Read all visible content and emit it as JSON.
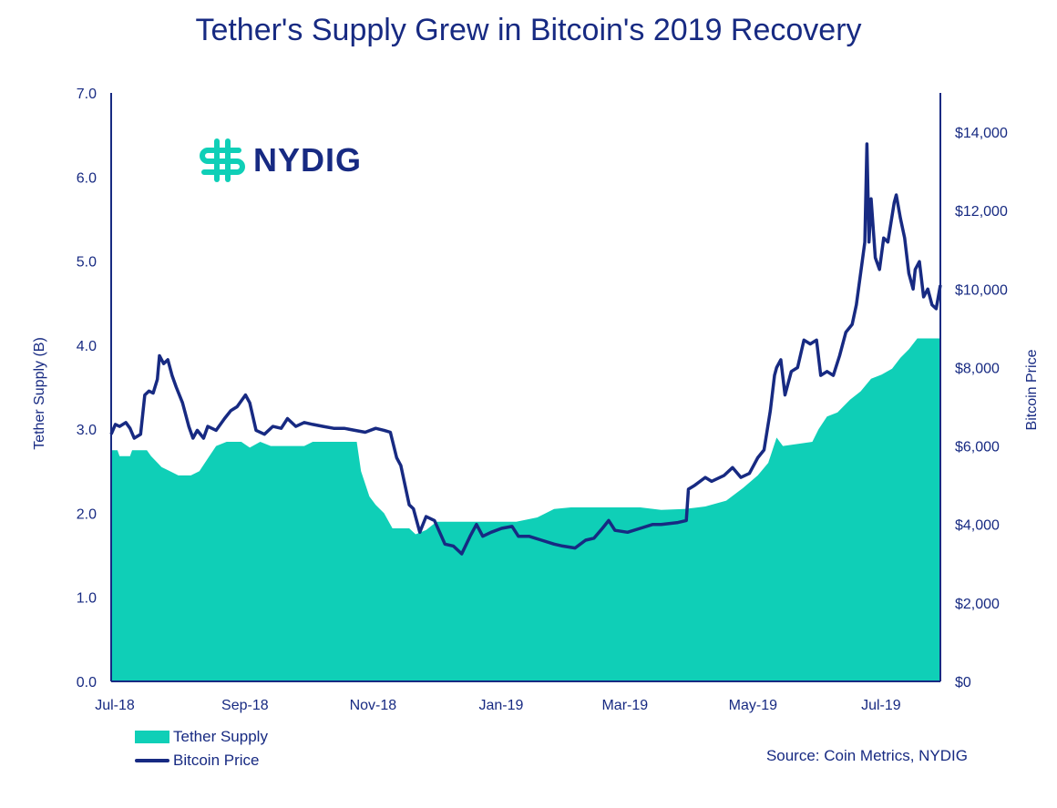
{
  "title": "Tether's Supply Grew in Bitcoin's 2019 Recovery",
  "source": "Source: Coin Metrics, NYDIG",
  "logo_text": "NYDIG",
  "colors": {
    "tether": "#0fcfb7",
    "bitcoin": "#172a82",
    "logo_icon": "#0fcfb7"
  },
  "legend": {
    "tether": "Tether Supply",
    "bitcoin": "Bitcoin Price"
  },
  "chart_data": {
    "type": "area",
    "title": "Tether's Supply Grew in Bitcoin's 2019 Recovery",
    "x_tick_labels": [
      "Jul-18",
      "Sep-18",
      "Nov-18",
      "Jan-19",
      "Mar-19",
      "May-19",
      "Jul-19"
    ],
    "x_range": [
      "2018-07-01",
      "2019-07-31"
    ],
    "y_left": {
      "label": "Tether Supply (B)",
      "ticks": [
        "0.0",
        "1.0",
        "2.0",
        "3.0",
        "4.0",
        "5.0",
        "6.0",
        "7.0"
      ],
      "range": [
        0,
        7
      ]
    },
    "y_right": {
      "label": "Bitcoin Price",
      "ticks": [
        "$0",
        "$2,000",
        "$4,000",
        "$6,000",
        "$8,000",
        "$10,000",
        "$12,000",
        "$14,000"
      ],
      "range": [
        0,
        15000
      ]
    },
    "grid": false,
    "legend_position": "bottom-left",
    "series": [
      {
        "name": "Tether Supply",
        "type": "area",
        "axis": "left",
        "points": [
          [
            "2018-07-01",
            2.75
          ],
          [
            "2018-07-04",
            2.75
          ],
          [
            "2018-07-05",
            2.68
          ],
          [
            "2018-07-10",
            2.68
          ],
          [
            "2018-07-11",
            2.75
          ],
          [
            "2018-07-18",
            2.75
          ],
          [
            "2018-07-20",
            2.68
          ],
          [
            "2018-07-25",
            2.55
          ],
          [
            "2018-07-29",
            2.5
          ],
          [
            "2018-08-02",
            2.45
          ],
          [
            "2018-08-08",
            2.45
          ],
          [
            "2018-08-12",
            2.5
          ],
          [
            "2018-08-16",
            2.65
          ],
          [
            "2018-08-20",
            2.8
          ],
          [
            "2018-08-25",
            2.85
          ],
          [
            "2018-09-01",
            2.85
          ],
          [
            "2018-09-05",
            2.78
          ],
          [
            "2018-09-10",
            2.85
          ],
          [
            "2018-09-15",
            2.8
          ],
          [
            "2018-10-01",
            2.8
          ],
          [
            "2018-10-05",
            2.85
          ],
          [
            "2018-10-26",
            2.85
          ],
          [
            "2018-10-28",
            2.5
          ],
          [
            "2018-11-01",
            2.2
          ],
          [
            "2018-11-04",
            2.1
          ],
          [
            "2018-11-08",
            2.0
          ],
          [
            "2018-11-12",
            1.82
          ],
          [
            "2018-11-20",
            1.82
          ],
          [
            "2018-11-23",
            1.75
          ],
          [
            "2018-11-28",
            1.8
          ],
          [
            "2018-12-03",
            1.9
          ],
          [
            "2019-01-01",
            1.9
          ],
          [
            "2019-01-10",
            1.9
          ],
          [
            "2019-01-20",
            1.95
          ],
          [
            "2019-01-28",
            2.05
          ],
          [
            "2019-02-05",
            2.07
          ],
          [
            "2019-03-10",
            2.07
          ],
          [
            "2019-03-20",
            2.04
          ],
          [
            "2019-03-31",
            2.05
          ],
          [
            "2019-04-10",
            2.08
          ],
          [
            "2019-04-20",
            2.15
          ],
          [
            "2019-04-28",
            2.3
          ],
          [
            "2019-05-05",
            2.45
          ],
          [
            "2019-05-10",
            2.6
          ],
          [
            "2019-05-14",
            2.9
          ],
          [
            "2019-05-17",
            2.8
          ],
          [
            "2019-05-31",
            2.85
          ],
          [
            "2019-06-03",
            3.0
          ],
          [
            "2019-06-07",
            3.15
          ],
          [
            "2019-06-12",
            3.2
          ],
          [
            "2019-06-18",
            3.35
          ],
          [
            "2019-06-23",
            3.45
          ],
          [
            "2019-06-28",
            3.6
          ],
          [
            "2019-07-03",
            3.65
          ],
          [
            "2019-07-08",
            3.72
          ],
          [
            "2019-07-12",
            3.85
          ],
          [
            "2019-07-16",
            3.95
          ],
          [
            "2019-07-20",
            4.08
          ],
          [
            "2019-07-31",
            4.08
          ]
        ]
      },
      {
        "name": "Bitcoin Price",
        "type": "line",
        "axis": "right",
        "points": [
          [
            "2018-07-01",
            6300
          ],
          [
            "2018-07-03",
            6550
          ],
          [
            "2018-07-05",
            6500
          ],
          [
            "2018-07-08",
            6600
          ],
          [
            "2018-07-10",
            6450
          ],
          [
            "2018-07-12",
            6200
          ],
          [
            "2018-07-15",
            6300
          ],
          [
            "2018-07-17",
            7300
          ],
          [
            "2018-07-19",
            7400
          ],
          [
            "2018-07-21",
            7350
          ],
          [
            "2018-07-23",
            7700
          ],
          [
            "2018-07-24",
            8300
          ],
          [
            "2018-07-26",
            8100
          ],
          [
            "2018-07-28",
            8200
          ],
          [
            "2018-07-30",
            7800
          ],
          [
            "2018-08-01",
            7500
          ],
          [
            "2018-08-04",
            7100
          ],
          [
            "2018-08-07",
            6500
          ],
          [
            "2018-08-09",
            6200
          ],
          [
            "2018-08-11",
            6400
          ],
          [
            "2018-08-14",
            6200
          ],
          [
            "2018-08-16",
            6500
          ],
          [
            "2018-08-20",
            6400
          ],
          [
            "2018-08-24",
            6700
          ],
          [
            "2018-08-27",
            6900
          ],
          [
            "2018-08-30",
            7000
          ],
          [
            "2018-09-03",
            7300
          ],
          [
            "2018-09-05",
            7100
          ],
          [
            "2018-09-08",
            6400
          ],
          [
            "2018-09-12",
            6300
          ],
          [
            "2018-09-16",
            6500
          ],
          [
            "2018-09-20",
            6450
          ],
          [
            "2018-09-23",
            6700
          ],
          [
            "2018-09-27",
            6500
          ],
          [
            "2018-10-01",
            6600
          ],
          [
            "2018-10-05",
            6550
          ],
          [
            "2018-10-10",
            6500
          ],
          [
            "2018-10-15",
            6450
          ],
          [
            "2018-10-20",
            6450
          ],
          [
            "2018-10-25",
            6400
          ],
          [
            "2018-10-30",
            6350
          ],
          [
            "2018-11-04",
            6450
          ],
          [
            "2018-11-08",
            6400
          ],
          [
            "2018-11-11",
            6350
          ],
          [
            "2018-11-14",
            5700
          ],
          [
            "2018-11-16",
            5500
          ],
          [
            "2018-11-20",
            4500
          ],
          [
            "2018-11-22",
            4400
          ],
          [
            "2018-11-25",
            3800
          ],
          [
            "2018-11-28",
            4200
          ],
          [
            "2018-12-02",
            4100
          ],
          [
            "2018-12-07",
            3500
          ],
          [
            "2018-12-11",
            3450
          ],
          [
            "2018-12-15",
            3250
          ],
          [
            "2018-12-19",
            3700
          ],
          [
            "2018-12-22",
            4000
          ],
          [
            "2018-12-25",
            3700
          ],
          [
            "2018-12-29",
            3800
          ],
          [
            "2019-01-03",
            3900
          ],
          [
            "2019-01-08",
            3950
          ],
          [
            "2019-01-11",
            3700
          ],
          [
            "2019-01-16",
            3700
          ],
          [
            "2019-01-22",
            3600
          ],
          [
            "2019-01-28",
            3500
          ],
          [
            "2019-02-01",
            3450
          ],
          [
            "2019-02-07",
            3400
          ],
          [
            "2019-02-12",
            3600
          ],
          [
            "2019-02-16",
            3650
          ],
          [
            "2019-02-20",
            3900
          ],
          [
            "2019-02-23",
            4100
          ],
          [
            "2019-02-26",
            3850
          ],
          [
            "2019-03-04",
            3800
          ],
          [
            "2019-03-10",
            3900
          ],
          [
            "2019-03-16",
            4000
          ],
          [
            "2019-03-20",
            4000
          ],
          [
            "2019-03-28",
            4050
          ],
          [
            "2019-04-01",
            4100
          ],
          [
            "2019-04-02",
            4900
          ],
          [
            "2019-04-05",
            5000
          ],
          [
            "2019-04-10",
            5200
          ],
          [
            "2019-04-13",
            5100
          ],
          [
            "2019-04-19",
            5250
          ],
          [
            "2019-04-23",
            5450
          ],
          [
            "2019-04-27",
            5200
          ],
          [
            "2019-05-01",
            5300
          ],
          [
            "2019-05-05",
            5700
          ],
          [
            "2019-05-08",
            5900
          ],
          [
            "2019-05-11",
            6900
          ],
          [
            "2019-05-13",
            7800
          ],
          [
            "2019-05-14",
            8000
          ],
          [
            "2019-05-16",
            8200
          ],
          [
            "2019-05-18",
            7300
          ],
          [
            "2019-05-21",
            7900
          ],
          [
            "2019-05-24",
            8000
          ],
          [
            "2019-05-27",
            8700
          ],
          [
            "2019-05-30",
            8600
          ],
          [
            "2019-06-02",
            8700
          ],
          [
            "2019-06-04",
            7800
          ],
          [
            "2019-06-07",
            7900
          ],
          [
            "2019-06-10",
            7800
          ],
          [
            "2019-06-13",
            8300
          ],
          [
            "2019-06-16",
            8900
          ],
          [
            "2019-06-19",
            9100
          ],
          [
            "2019-06-21",
            9600
          ],
          [
            "2019-06-24",
            10800
          ],
          [
            "2019-06-25",
            11200
          ],
          [
            "2019-06-26",
            13700
          ],
          [
            "2019-06-27",
            11200
          ],
          [
            "2019-06-28",
            12300
          ],
          [
            "2019-06-30",
            10800
          ],
          [
            "2019-07-02",
            10500
          ],
          [
            "2019-07-04",
            11300
          ],
          [
            "2019-07-06",
            11200
          ],
          [
            "2019-07-09",
            12200
          ],
          [
            "2019-07-10",
            12400
          ],
          [
            "2019-07-12",
            11800
          ],
          [
            "2019-07-14",
            11300
          ],
          [
            "2019-07-16",
            10400
          ],
          [
            "2019-07-18",
            10000
          ],
          [
            "2019-07-19",
            10500
          ],
          [
            "2019-07-21",
            10700
          ],
          [
            "2019-07-23",
            9800
          ],
          [
            "2019-07-25",
            10000
          ],
          [
            "2019-07-27",
            9600
          ],
          [
            "2019-07-29",
            9500
          ],
          [
            "2019-07-31",
            10100
          ]
        ]
      }
    ]
  }
}
